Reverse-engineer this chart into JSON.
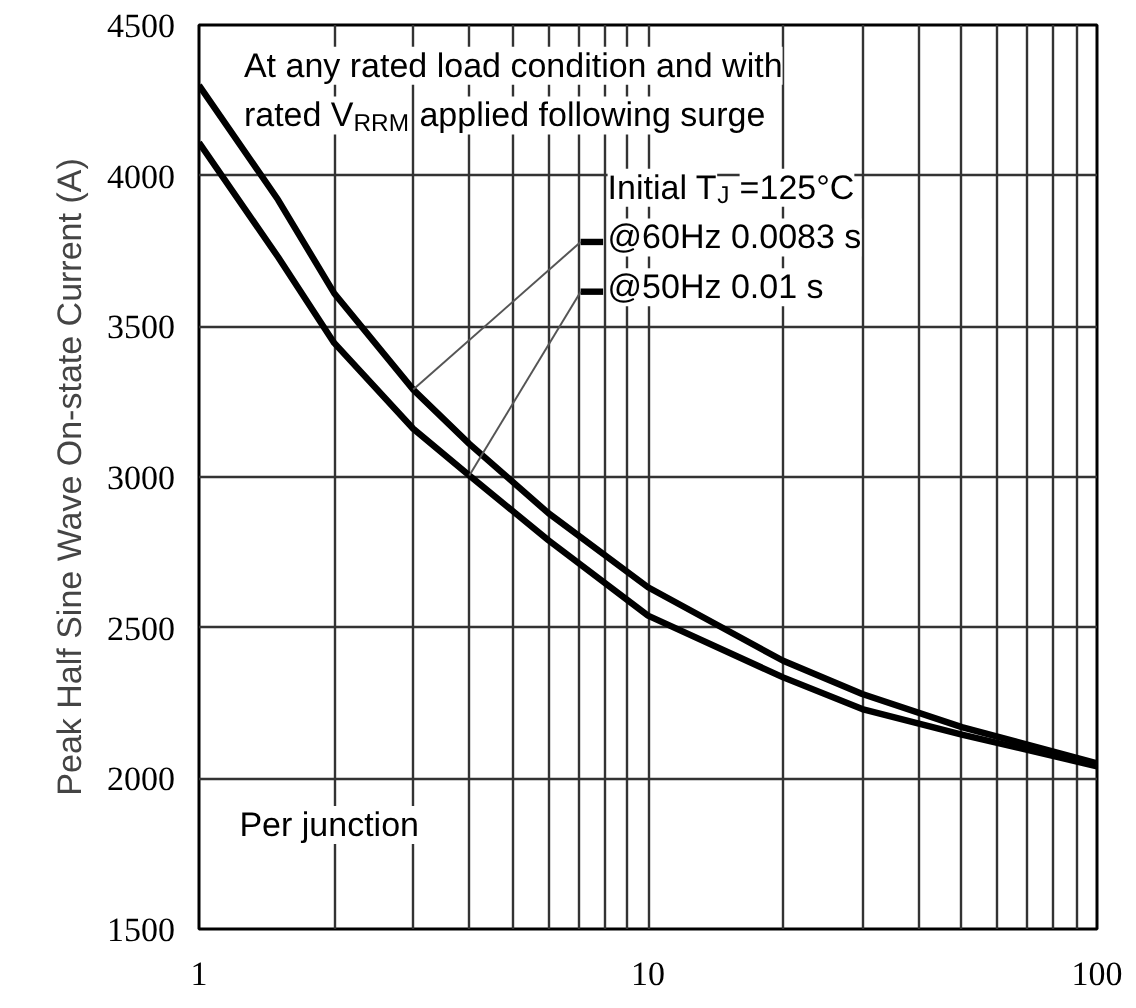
{
  "chart_data": {
    "type": "line",
    "ylabel": "Peak Half Sine Wave On-state Current (A)",
    "x": [
      1,
      1.5,
      2,
      3,
      4,
      6,
      10,
      20,
      30,
      50,
      100
    ],
    "series": [
      {
        "name": "@60Hz 0.0083 s",
        "color": "#000000",
        "values": [
          4300,
          3920,
          3610,
          3290,
          3110,
          2880,
          2634,
          2390,
          2280,
          2170,
          2050
        ]
      },
      {
        "name": "@50Hz 0.01 s",
        "color": "#000000",
        "values": [
          4110,
          3730,
          3445,
          3160,
          3005,
          2790,
          2540,
          2335,
          2230,
          2145,
          2040
        ]
      }
    ],
    "log": "x",
    "xlim": [
      1,
      100
    ],
    "xticks": [
      1,
      {
        "value": 2,
        "label": null
      },
      {
        "value": 3,
        "label": null
      },
      {
        "value": 4,
        "label": null
      },
      {
        "value": 5,
        "label": null
      },
      {
        "value": 6,
        "label": null
      },
      {
        "value": 7,
        "label": null
      },
      {
        "value": 8,
        "label": null
      },
      {
        "value": 9,
        "label": null
      },
      10,
      {
        "value": 20,
        "label": null
      },
      {
        "value": 30,
        "label": null
      },
      {
        "value": 40,
        "label": null
      },
      {
        "value": 50,
        "label": null
      },
      {
        "value": 60,
        "label": null
      },
      {
        "value": 70,
        "label": null
      },
      {
        "value": 80,
        "label": null
      },
      {
        "value": 90,
        "label": null
      },
      100
    ],
    "ylim": [
      1500,
      4500
    ],
    "yticks": [
      1500,
      2000,
      2500,
      3000,
      3500,
      4000,
      4500
    ],
    "grid": true,
    "legend": "top right",
    "marker": "none",
    "line_style": "solid",
    "annotations": [
      "At any rated load condition and with",
      "rated V$_{RRM}$ applied following surge",
      "Initial T$_{J}$=125°C",
      "Per junction"
    ]
  }
}
